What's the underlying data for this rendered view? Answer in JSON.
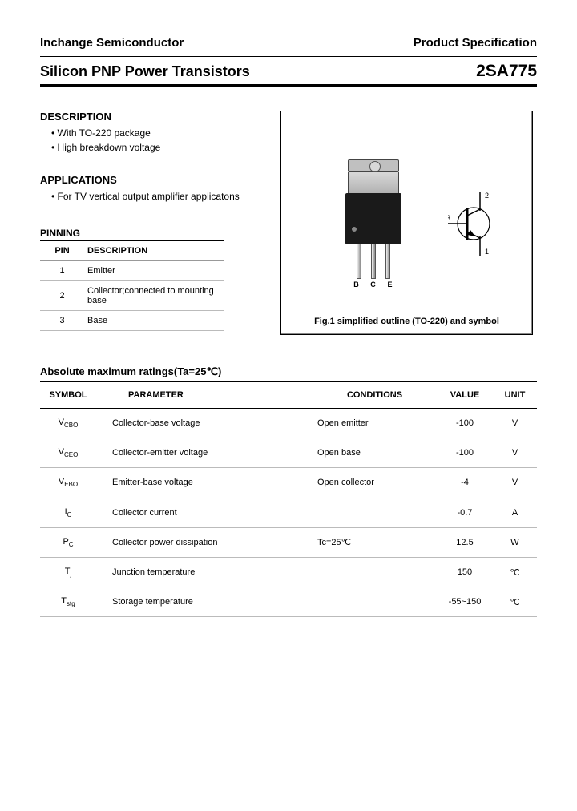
{
  "header": {
    "left": "Inchange Semiconductor",
    "right": "Product Specification"
  },
  "title": {
    "left": "Silicon PNP Power Transistors",
    "right": "2SA775"
  },
  "description": {
    "heading": "DESCRIPTION",
    "items": [
      "With TO-220 package",
      "High breakdown voltage"
    ]
  },
  "applications": {
    "heading": "APPLICATIONS",
    "items": [
      "For TV vertical output amplifier applicatons"
    ]
  },
  "pinning": {
    "heading": "PINNING",
    "columns": [
      "PIN",
      "DESCRIPTION"
    ],
    "rows": [
      {
        "pin": "1",
        "desc": "Emitter"
      },
      {
        "pin": "2",
        "desc": "Collector;connected to mounting base"
      },
      {
        "pin": "3",
        "desc": "Base"
      }
    ]
  },
  "figure": {
    "lead_labels": [
      "B",
      "C",
      "E"
    ],
    "pin_labels": {
      "p1": "1",
      "p2": "2",
      "p3": "3"
    },
    "caption": "Fig.1 simplified outline (TO-220) and symbol"
  },
  "ratings": {
    "heading": "Absolute maximum ratings(Ta=25℃)",
    "columns": [
      "SYMBOL",
      "PARAMETER",
      "CONDITIONS",
      "VALUE",
      "UNIT"
    ],
    "rows": [
      {
        "sym": "V",
        "sub": "CBO",
        "param": "Collector-base voltage",
        "cond": "Open emitter",
        "value": "-100",
        "unit": "V"
      },
      {
        "sym": "V",
        "sub": "CEO",
        "param": "Collector-emitter voltage",
        "cond": "Open base",
        "value": "-100",
        "unit": "V"
      },
      {
        "sym": "V",
        "sub": "EBO",
        "param": "Emitter-base voltage",
        "cond": "Open collector",
        "value": "-4",
        "unit": "V"
      },
      {
        "sym": "I",
        "sub": "C",
        "param": "Collector current",
        "cond": "",
        "value": "-0.7",
        "unit": "A"
      },
      {
        "sym": "P",
        "sub": "C",
        "param": "Collector power dissipation",
        "cond": "Tc=25℃",
        "value": "12.5",
        "unit": "W"
      },
      {
        "sym": "T",
        "sub": "j",
        "param": "Junction temperature",
        "cond": "",
        "value": "150",
        "unit": "℃"
      },
      {
        "sym": "T",
        "sub": "stg",
        "param": "Storage temperature",
        "cond": "",
        "value": "-55~150",
        "unit": "℃"
      }
    ]
  },
  "colors": {
    "rule_thick": "#000000",
    "rule_thin": "#bbbbbb",
    "pkg_body": "#1a1a1a",
    "pkg_metal": "#c0c0c0"
  }
}
